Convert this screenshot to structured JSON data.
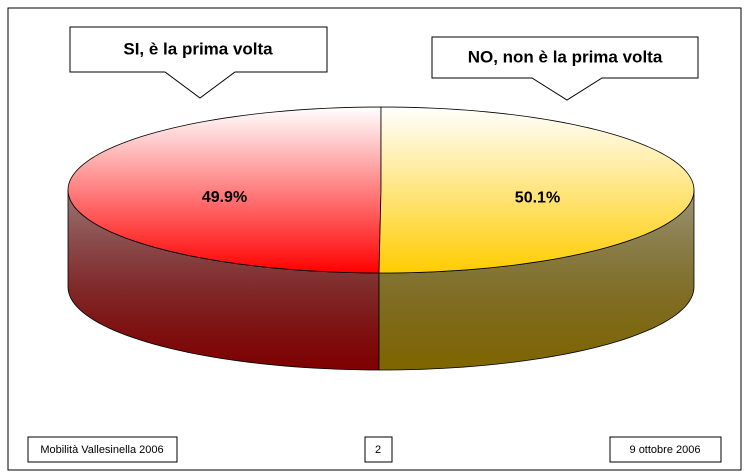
{
  "chart_data": {
    "type": "pie",
    "categories": [
      "SI, è la prima volta",
      "NO, non è la prima volta"
    ],
    "values": [
      49.9,
      50.1
    ],
    "value_labels": [
      "49.9%",
      "50.1%"
    ],
    "colors": [
      "#ff0000",
      "#ffcc00"
    ]
  },
  "footer": {
    "left": "Mobilità Vallesinella 2006",
    "center": "2",
    "right": "9 ottobre 2006"
  }
}
